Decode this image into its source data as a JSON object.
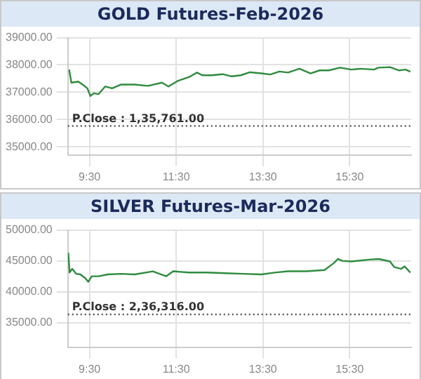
{
  "chart_data": [
    {
      "type": "line",
      "title": "GOLD Futures-Feb-2026",
      "xlim": [
        9,
        16.92
      ],
      "xticks": [
        {
          "value": 9.5,
          "label": "9:30"
        },
        {
          "value": 11.5,
          "label": "11:30"
        },
        {
          "value": 13.5,
          "label": "13:30"
        },
        {
          "value": 15.5,
          "label": "15:30"
        }
      ],
      "ylim": [
        34700,
        39000
      ],
      "yticks": [
        {
          "value": 35000,
          "label": "35000.00"
        },
        {
          "value": 36000,
          "label": "36000.00"
        },
        {
          "value": 37000,
          "label": "37000.00"
        },
        {
          "value": 38000,
          "label": "38000.00"
        },
        {
          "value": 39000,
          "label": "39000.00"
        }
      ],
      "grid": true,
      "legend": false,
      "marker": "none",
      "line_style": "solid",
      "annotations": [
        "P.Close : 1,35,761.00"
      ],
      "ref_lines": [
        {
          "axis": "y",
          "value": 35761,
          "color": "#555555",
          "line_style": "dotted"
        }
      ],
      "series": [
        {
          "color": "#2e8b3e",
          "x": [
            9.03,
            9.08,
            9.24,
            9.34,
            9.45,
            9.52,
            9.6,
            9.71,
            9.86,
            10.02,
            10.23,
            10.54,
            10.85,
            11.17,
            11.32,
            11.53,
            11.79,
            11.98,
            12.1,
            12.31,
            12.57,
            12.78,
            12.99,
            13.2,
            13.46,
            13.67,
            13.88,
            14.08,
            14.34,
            14.6,
            14.81,
            15.02,
            15.28,
            15.54,
            15.75,
            16.06,
            16.17,
            16.43,
            16.64,
            16.79,
            16.9
          ],
          "values": [
            37830,
            37350,
            37390,
            37280,
            37140,
            36860,
            36960,
            36930,
            37210,
            37140,
            37280,
            37280,
            37230,
            37350,
            37210,
            37410,
            37550,
            37720,
            37620,
            37620,
            37660,
            37580,
            37620,
            37730,
            37690,
            37650,
            37760,
            37720,
            37860,
            37690,
            37800,
            37800,
            37900,
            37830,
            37860,
            37830,
            37900,
            37920,
            37800,
            37830,
            37750
          ]
        }
      ]
    },
    {
      "type": "line",
      "title": "SILVER Futures-Mar-2026",
      "xlim": [
        9,
        16.92
      ],
      "xticks": [
        {
          "value": 9.5,
          "label": "9:30"
        },
        {
          "value": 11.5,
          "label": "11:30"
        },
        {
          "value": 13.5,
          "label": "13:30"
        },
        {
          "value": 15.5,
          "label": "15:30"
        }
      ],
      "ylim": [
        31000,
        50000
      ],
      "yticks": [
        {
          "value": 35000,
          "label": "35000.00"
        },
        {
          "value": 40000,
          "label": "40000.00"
        },
        {
          "value": 45000,
          "label": "45000.00"
        },
        {
          "value": 50000,
          "label": "50000.00"
        }
      ],
      "grid": true,
      "legend": false,
      "marker": "none",
      "line_style": "solid",
      "annotations": [
        "P.Close : 2,36,316.00"
      ],
      "ref_lines": [
        {
          "axis": "y",
          "value": 36316,
          "color": "#555555",
          "line_style": "dotted"
        }
      ],
      "series": [
        {
          "color": "#2e8b3e",
          "x": [
            9.01,
            9.04,
            9.1,
            9.19,
            9.29,
            9.4,
            9.47,
            9.55,
            9.71,
            9.92,
            10.23,
            10.54,
            10.96,
            11.27,
            11.43,
            11.79,
            12.21,
            12.63,
            13.04,
            13.46,
            13.77,
            14.08,
            14.5,
            14.92,
            15.13,
            15.23,
            15.33,
            15.54,
            15.96,
            16.17,
            16.43,
            16.53,
            16.69,
            16.77,
            16.9
          ],
          "values": [
            46300,
            43100,
            43700,
            42900,
            42800,
            42200,
            41600,
            42500,
            42500,
            42800,
            42900,
            42800,
            43300,
            42500,
            43300,
            43100,
            43100,
            43000,
            42900,
            42800,
            43100,
            43300,
            43300,
            43500,
            44600,
            45300,
            45000,
            44900,
            45200,
            45300,
            44900,
            44000,
            43700,
            44100,
            43100
          ]
        }
      ]
    }
  ]
}
